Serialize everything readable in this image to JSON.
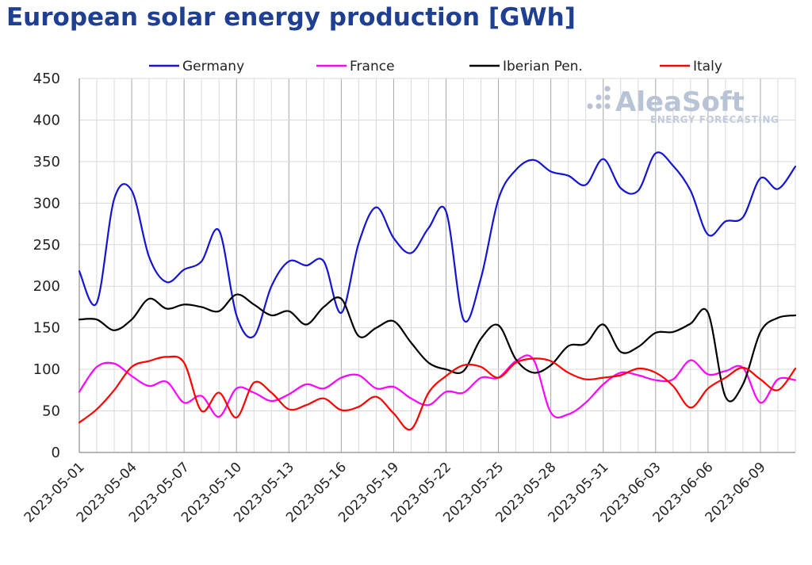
{
  "chart_data": {
    "type": "line",
    "title": "European solar energy production [GWh]",
    "ylim": [
      0,
      450
    ],
    "yticks": [
      0,
      50,
      100,
      150,
      200,
      250,
      300,
      350,
      400,
      450
    ],
    "xtick_labels": [
      "2023-05-01",
      "2023-05-04",
      "2023-05-07",
      "2023-05-10",
      "2023-05-13",
      "2023-05-16",
      "2023-05-19",
      "2023-05-22",
      "2023-05-25",
      "2023-05-28",
      "2023-05-31",
      "2023-06-03",
      "2023-06-06",
      "2023-06-09"
    ],
    "x": [
      "2023-05-01",
      "2023-05-02",
      "2023-05-03",
      "2023-05-04",
      "2023-05-05",
      "2023-05-06",
      "2023-05-07",
      "2023-05-08",
      "2023-05-09",
      "2023-05-10",
      "2023-05-11",
      "2023-05-12",
      "2023-05-13",
      "2023-05-14",
      "2023-05-15",
      "2023-05-16",
      "2023-05-17",
      "2023-05-18",
      "2023-05-19",
      "2023-05-20",
      "2023-05-21",
      "2023-05-22",
      "2023-05-23",
      "2023-05-24",
      "2023-05-25",
      "2023-05-26",
      "2023-05-27",
      "2023-05-28",
      "2023-05-29",
      "2023-05-30",
      "2023-05-31",
      "2023-06-01",
      "2023-06-02",
      "2023-06-03",
      "2023-06-04",
      "2023-06-05",
      "2023-06-06",
      "2023-06-07",
      "2023-06-08",
      "2023-06-09",
      "2023-06-10",
      "2023-06-11"
    ],
    "grid": true,
    "legend_position": "top",
    "series": [
      {
        "name": "Germany",
        "color": "#1414d2",
        "values": [
          218,
          180,
          305,
          315,
          235,
          205,
          220,
          230,
          267,
          165,
          140,
          200,
          230,
          225,
          230,
          168,
          252,
          295,
          258,
          240,
          270,
          290,
          160,
          210,
          305,
          340,
          352,
          338,
          333,
          322,
          353,
          318,
          315,
          360,
          345,
          315,
          262,
          278,
          283,
          330,
          317,
          344
        ]
      },
      {
        "name": "France",
        "color": "#ff00ff",
        "values": [
          73,
          103,
          107,
          92,
          80,
          85,
          60,
          68,
          43,
          77,
          72,
          62,
          70,
          82,
          77,
          90,
          93,
          77,
          79,
          65,
          57,
          73,
          72,
          90,
          90,
          110,
          112,
          48,
          46,
          60,
          82,
          96,
          93,
          87,
          88,
          111,
          94,
          98,
          102,
          60,
          88,
          87
        ]
      },
      {
        "name": "Iberian Pen.",
        "color": "#000000",
        "values": [
          160,
          160,
          147,
          160,
          185,
          173,
          178,
          175,
          170,
          190,
          178,
          165,
          170,
          154,
          175,
          185,
          140,
          150,
          158,
          132,
          108,
          100,
          98,
          137,
          153,
          112,
          96,
          105,
          128,
          131,
          154,
          121,
          127,
          144,
          145,
          155,
          168,
          67,
          82,
          145,
          162,
          165
        ]
      },
      {
        "name": "Italy",
        "color": "#ff0000",
        "values": [
          36,
          52,
          75,
          103,
          110,
          115,
          108,
          50,
          72,
          42,
          84,
          72,
          52,
          57,
          65,
          51,
          55,
          67,
          47,
          28,
          72,
          92,
          105,
          103,
          90,
          108,
          113,
          110,
          96,
          88,
          90,
          93,
          101,
          96,
          80,
          54,
          77,
          90,
          102,
          88,
          75,
          101
        ]
      }
    ]
  },
  "watermark": {
    "brand": "AleaSoft",
    "tagline": "ENERGY FORECASTING"
  }
}
